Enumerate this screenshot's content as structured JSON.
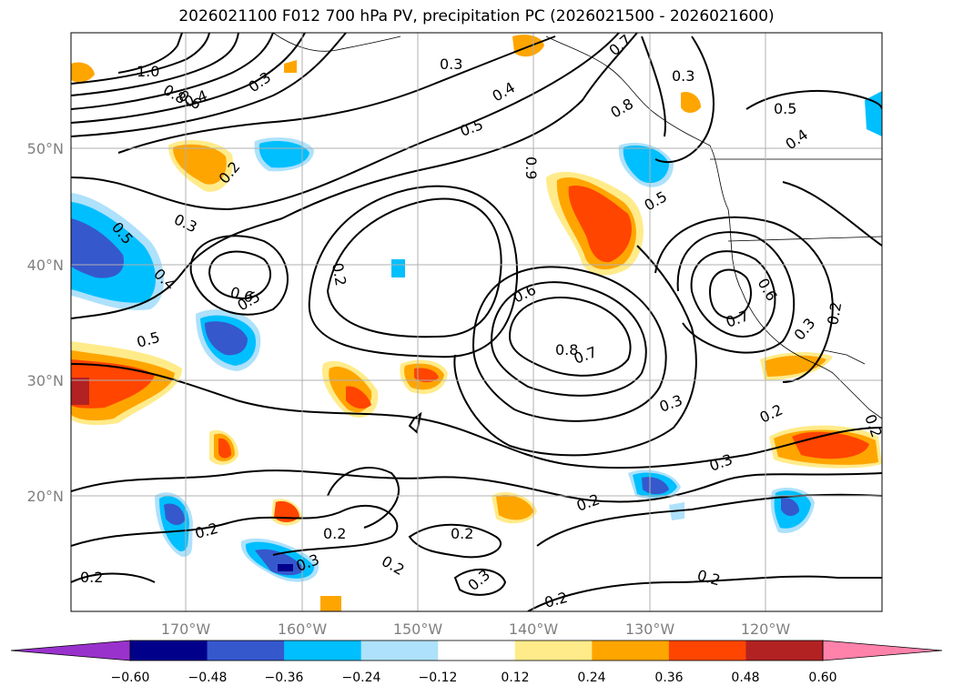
{
  "title": "2026021100 F012 700 hPa PV, precipitation PC (2026021500 - 2026021600)",
  "lon_labels": [
    "170°W",
    "160°W",
    "150°W",
    "140°W",
    "130°W",
    "120°W"
  ],
  "lat_labels": [
    "50°N",
    "40°N",
    "30°N",
    "20°N"
  ],
  "colorbar": {
    "tick_labels": [
      "−0.60",
      "−0.48",
      "−0.36",
      "−0.24",
      "−0.12",
      "0.12",
      "0.24",
      "0.36",
      "0.48",
      "0.60"
    ],
    "colors": [
      "#9932cc",
      "#00008b",
      "#3658cd",
      "#00bfff",
      "#aee1fb",
      "#ffffff",
      "#ffeb8a",
      "#ffa500",
      "#ff4500",
      "#b22222",
      "#ff82ab"
    ]
  },
  "contour_labels": [
    "1.0",
    "0.8",
    "0.6",
    "0.4",
    "0.3",
    "0.3",
    "0.3",
    "0.5",
    "0.4",
    "0.7",
    "0.8",
    "0.5",
    "0.4",
    "0.9",
    "0.5",
    "0.2",
    "0.3",
    "0.5",
    "0.4",
    "0.2",
    "0.6",
    "0.5",
    "0.6",
    "0.8",
    "0.7",
    "0.5",
    "0.7",
    "0.6",
    "0.3",
    "0.2",
    "0.3",
    "0.2",
    "0.3",
    "0.2",
    "0.2",
    "0.2",
    "0.2",
    "0.3",
    "0.2",
    "0.2",
    "0.3",
    "0.2",
    "0.2",
    "0.2"
  ],
  "legend_colors": {
    "grid": "#b0b0b0",
    "axis_label": "#808080"
  }
}
